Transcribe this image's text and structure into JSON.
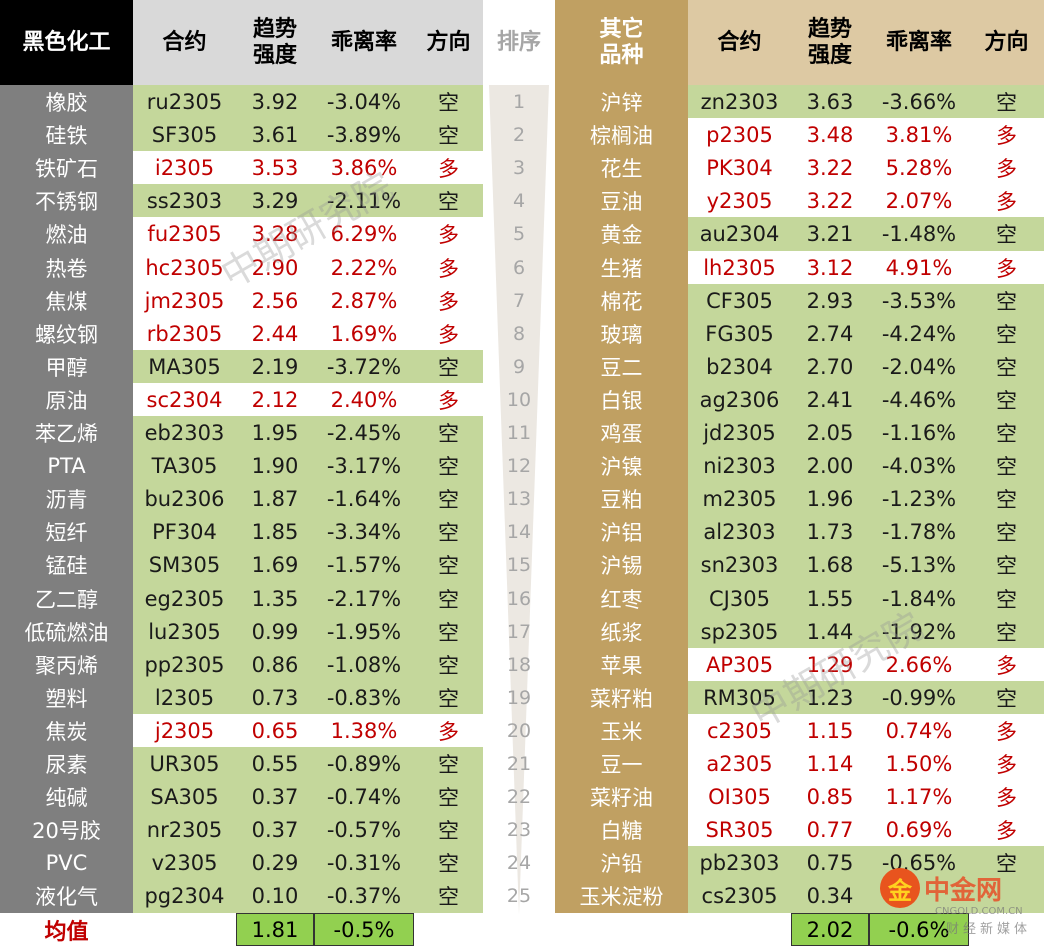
{
  "left_header": {
    "category": "黑色化工",
    "contract": "合约",
    "trend_line1": "趋势",
    "trend_line2": "强度",
    "deviation": "乖离率",
    "direction": "方向"
  },
  "rank_header": "排序",
  "right_header": {
    "category_line1": "其它",
    "category_line2": "品种",
    "contract": "合约",
    "trend_line1": "趋势",
    "trend_line2": "强度",
    "deviation": "乖离率",
    "direction": "方向"
  },
  "left_rows": [
    {
      "name": "橡胶",
      "contract": "ru2305",
      "trend": "3.92",
      "dev": "-3.04%",
      "dir": "空"
    },
    {
      "name": "硅铁",
      "contract": "SF305",
      "trend": "3.61",
      "dev": "-3.89%",
      "dir": "空"
    },
    {
      "name": "铁矿石",
      "contract": "i2305",
      "trend": "3.53",
      "dev": "3.86%",
      "dir": "多"
    },
    {
      "name": "不锈钢",
      "contract": "ss2303",
      "trend": "3.29",
      "dev": "-2.11%",
      "dir": "空"
    },
    {
      "name": "燃油",
      "contract": "fu2305",
      "trend": "3.28",
      "dev": "6.29%",
      "dir": "多"
    },
    {
      "name": "热卷",
      "contract": "hc2305",
      "trend": "2.90",
      "dev": "2.22%",
      "dir": "多"
    },
    {
      "name": "焦煤",
      "contract": "jm2305",
      "trend": "2.56",
      "dev": "2.87%",
      "dir": "多"
    },
    {
      "name": "螺纹钢",
      "contract": "rb2305",
      "trend": "2.44",
      "dev": "1.69%",
      "dir": "多"
    },
    {
      "name": "甲醇",
      "contract": "MA305",
      "trend": "2.19",
      "dev": "-3.72%",
      "dir": "空"
    },
    {
      "name": "原油",
      "contract": "sc2304",
      "trend": "2.12",
      "dev": "2.40%",
      "dir": "多"
    },
    {
      "name": "苯乙烯",
      "contract": "eb2303",
      "trend": "1.95",
      "dev": "-2.45%",
      "dir": "空"
    },
    {
      "name": "PTA",
      "contract": "TA305",
      "trend": "1.90",
      "dev": "-3.17%",
      "dir": "空"
    },
    {
      "name": "沥青",
      "contract": "bu2306",
      "trend": "1.87",
      "dev": "-1.64%",
      "dir": "空"
    },
    {
      "name": "短纤",
      "contract": "PF304",
      "trend": "1.85",
      "dev": "-3.34%",
      "dir": "空"
    },
    {
      "name": "锰硅",
      "contract": "SM305",
      "trend": "1.69",
      "dev": "-1.57%",
      "dir": "空"
    },
    {
      "name": "乙二醇",
      "contract": "eg2305",
      "trend": "1.35",
      "dev": "-2.17%",
      "dir": "空"
    },
    {
      "name": "低硫燃油",
      "contract": "lu2305",
      "trend": "0.99",
      "dev": "-1.95%",
      "dir": "空"
    },
    {
      "name": "聚丙烯",
      "contract": "pp2305",
      "trend": "0.86",
      "dev": "-1.08%",
      "dir": "空"
    },
    {
      "name": "塑料",
      "contract": "l2305",
      "trend": "0.73",
      "dev": "-0.83%",
      "dir": "空"
    },
    {
      "name": "焦炭",
      "contract": "j2305",
      "trend": "0.65",
      "dev": "1.38%",
      "dir": "多"
    },
    {
      "name": "尿素",
      "contract": "UR305",
      "trend": "0.55",
      "dev": "-0.89%",
      "dir": "空"
    },
    {
      "name": "纯碱",
      "contract": "SA305",
      "trend": "0.37",
      "dev": "-0.74%",
      "dir": "空"
    },
    {
      "name": "20号胶",
      "contract": "nr2305",
      "trend": "0.37",
      "dev": "-0.57%",
      "dir": "空"
    },
    {
      "name": "PVC",
      "contract": "v2305",
      "trend": "0.29",
      "dev": "-0.31%",
      "dir": "空"
    },
    {
      "name": "液化气",
      "contract": "pg2304",
      "trend": "0.10",
      "dev": "-0.37%",
      "dir": "空"
    }
  ],
  "ranks": [
    "1",
    "2",
    "3",
    "4",
    "5",
    "6",
    "7",
    "8",
    "9",
    "10",
    "11",
    "12",
    "13",
    "14",
    "15",
    "16",
    "17",
    "18",
    "19",
    "20",
    "21",
    "22",
    "23",
    "24",
    "25"
  ],
  "right_rows": [
    {
      "name": "沪锌",
      "contract": "zn2303",
      "trend": "3.63",
      "dev": "-3.66%",
      "dir": "空"
    },
    {
      "name": "棕榈油",
      "contract": "p2305",
      "trend": "3.48",
      "dev": "3.81%",
      "dir": "多"
    },
    {
      "name": "花生",
      "contract": "PK304",
      "trend": "3.22",
      "dev": "5.28%",
      "dir": "多"
    },
    {
      "name": "豆油",
      "contract": "y2305",
      "trend": "3.22",
      "dev": "2.07%",
      "dir": "多"
    },
    {
      "name": "黄金",
      "contract": "au2304",
      "trend": "3.21",
      "dev": "-1.48%",
      "dir": "空"
    },
    {
      "name": "生猪",
      "contract": "lh2305",
      "trend": "3.12",
      "dev": "4.91%",
      "dir": "多"
    },
    {
      "name": "棉花",
      "contract": "CF305",
      "trend": "2.93",
      "dev": "-3.53%",
      "dir": "空"
    },
    {
      "name": "玻璃",
      "contract": "FG305",
      "trend": "2.74",
      "dev": "-4.24%",
      "dir": "空"
    },
    {
      "name": "豆二",
      "contract": "b2304",
      "trend": "2.70",
      "dev": "-2.04%",
      "dir": "空"
    },
    {
      "name": "白银",
      "contract": "ag2306",
      "trend": "2.41",
      "dev": "-4.46%",
      "dir": "空"
    },
    {
      "name": "鸡蛋",
      "contract": "jd2305",
      "trend": "2.05",
      "dev": "-1.16%",
      "dir": "空"
    },
    {
      "name": "沪镍",
      "contract": "ni2303",
      "trend": "2.00",
      "dev": "-4.03%",
      "dir": "空"
    },
    {
      "name": "豆粕",
      "contract": "m2305",
      "trend": "1.96",
      "dev": "-1.23%",
      "dir": "空"
    },
    {
      "name": "沪铝",
      "contract": "al2303",
      "trend": "1.73",
      "dev": "-1.78%",
      "dir": "空"
    },
    {
      "name": "沪锡",
      "contract": "sn2303",
      "trend": "1.68",
      "dev": "-5.13%",
      "dir": "空"
    },
    {
      "name": "红枣",
      "contract": "CJ305",
      "trend": "1.55",
      "dev": "-1.84%",
      "dir": "空"
    },
    {
      "name": "纸浆",
      "contract": "sp2305",
      "trend": "1.44",
      "dev": "-1.92%",
      "dir": "空"
    },
    {
      "name": "苹果",
      "contract": "AP305",
      "trend": "1.29",
      "dev": "2.66%",
      "dir": "多"
    },
    {
      "name": "菜籽粕",
      "contract": "RM305",
      "trend": "1.23",
      "dev": "-0.99%",
      "dir": "空"
    },
    {
      "name": "玉米",
      "contract": "c2305",
      "trend": "1.15",
      "dev": "0.74%",
      "dir": "多"
    },
    {
      "name": "豆一",
      "contract": "a2305",
      "trend": "1.14",
      "dev": "1.50%",
      "dir": "多"
    },
    {
      "name": "菜籽油",
      "contract": "OI305",
      "trend": "0.85",
      "dev": "1.17%",
      "dir": "多"
    },
    {
      "name": "白糖",
      "contract": "SR305",
      "trend": "0.77",
      "dev": "0.69%",
      "dir": "多"
    },
    {
      "name": "沪铅",
      "contract": "pb2303",
      "trend": "0.75",
      "dev": "-0.65%",
      "dir": "空"
    },
    {
      "name": "玉米淀粉",
      "contract": "cs2305",
      "trend": "0.34",
      "dev": "",
      "dir": ""
    }
  ],
  "footer": {
    "label": "均值",
    "left_trend_avg": "1.81",
    "left_dev_avg": "-0.5%",
    "right_trend_avg": "2.02",
    "right_dev_avg": "-0.6%"
  },
  "watermark": "中期研究院",
  "logo": {
    "mark": "金",
    "text": "中金网",
    "url": "CNGOLD.COM.CN",
    "sub": "财经新媒体"
  },
  "colors": {
    "long_red": "#c00000",
    "short_green_bg": "#c4d79b",
    "left_name_bg": "#7f7f7f",
    "right_name_bg": "#c0a062",
    "avg_bg": "#92d050"
  }
}
